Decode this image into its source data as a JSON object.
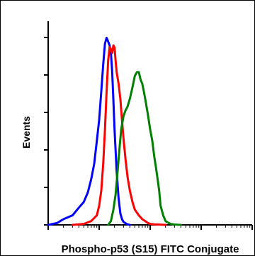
{
  "chart_data": {
    "type": "line",
    "title": "",
    "xlabel": "Phospho-p53 (S15) FITC Conjugate",
    "ylabel": "Events",
    "x_scale": "log",
    "xlim": [
      1,
      10000
    ],
    "ylim": [
      0,
      100
    ],
    "grid": false,
    "legend": "none",
    "series": [
      {
        "color": "#0000ff",
        "x": [
          1,
          1.5,
          2,
          3,
          4,
          5,
          6,
          7,
          8,
          9,
          10,
          11,
          12,
          13,
          14,
          15,
          16,
          17,
          18,
          19,
          20,
          22,
          24,
          26,
          28,
          30,
          33,
          36,
          40
        ],
        "y": [
          0,
          1,
          3,
          5,
          9,
          12,
          17,
          24,
          32,
          44,
          55,
          70,
          84,
          95,
          98,
          96,
          94,
          90,
          80,
          65,
          50,
          28,
          14,
          6,
          3,
          1.5,
          0.8,
          0.3,
          0
        ]
      },
      {
        "color": "#ff0000",
        "x": [
          3,
          5,
          7,
          9,
          10,
          11,
          12,
          13,
          14,
          15,
          16,
          17,
          18,
          19,
          20,
          21,
          22,
          24,
          26,
          28,
          30,
          33,
          36,
          40,
          45,
          50,
          60,
          70,
          80,
          90,
          100,
          120,
          150,
          200
        ],
        "y": [
          0,
          0.5,
          2,
          5,
          10,
          18,
          32,
          50,
          70,
          86,
          93,
          92,
          90,
          94,
          93,
          86,
          80,
          74,
          66,
          55,
          45,
          34,
          25,
          18,
          12,
          8,
          5,
          3,
          2,
          1,
          0.5,
          0.3,
          0.2,
          0
        ]
      },
      {
        "color": "#008000",
        "x": [
          15,
          17,
          19,
          21,
          23,
          25,
          27,
          30,
          33,
          36,
          40,
          45,
          50,
          55,
          60,
          65,
          70,
          75,
          80,
          90,
          100,
          110,
          120,
          130,
          140,
          150,
          160,
          180,
          200,
          230,
          260,
          300,
          400
        ],
        "y": [
          0,
          2,
          8,
          16,
          28,
          40,
          50,
          57,
          60,
          62,
          66,
          72,
          78,
          80,
          80,
          76,
          74,
          70,
          66,
          58,
          50,
          44,
          36,
          30,
          24,
          18,
          10,
          5,
          2,
          1,
          0.4,
          0.2,
          0
        ]
      }
    ]
  }
}
